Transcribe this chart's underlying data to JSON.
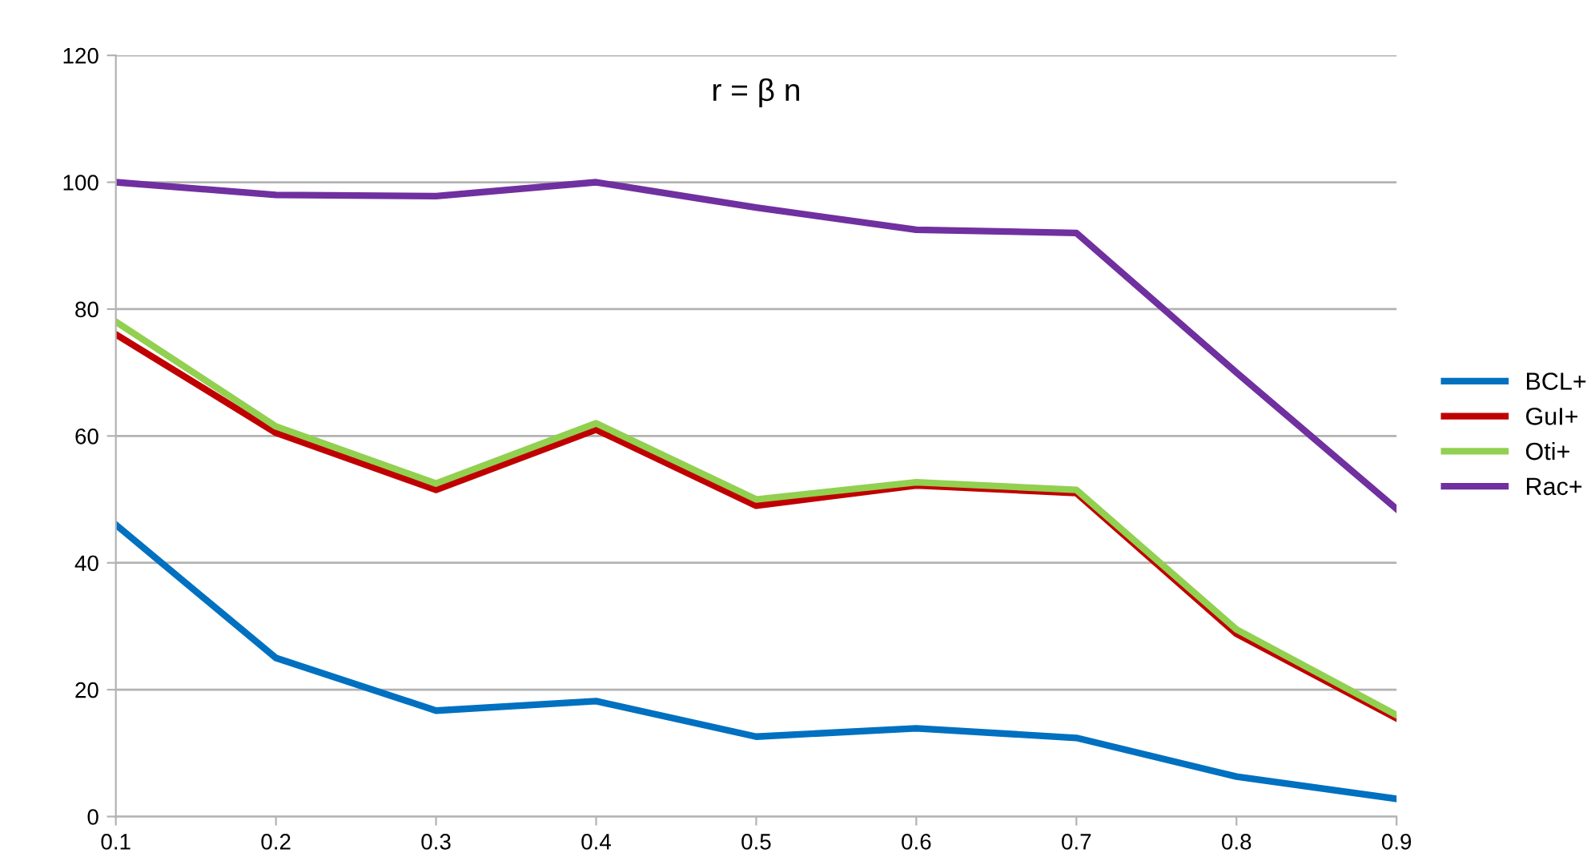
{
  "chart_data": {
    "type": "line",
    "title": "r = β n",
    "x": [
      0.1,
      0.2,
      0.3,
      0.4,
      0.5,
      0.6,
      0.7,
      0.8,
      0.9
    ],
    "series": [
      {
        "name": "BCL+",
        "color": "#0070c0",
        "values": [
          46,
          25,
          16.7,
          18.2,
          12.6,
          13.9,
          12.4,
          6.3,
          2.8
        ]
      },
      {
        "name": "GuI+",
        "color": "#c00000",
        "values": [
          76,
          60.5,
          51.5,
          61,
          49,
          52.2,
          51,
          28.8,
          15.5
        ]
      },
      {
        "name": "Oti+",
        "color": "#92d050",
        "values": [
          78,
          61.5,
          52.5,
          62,
          50,
          52.7,
          51.5,
          29.5,
          16
        ]
      },
      {
        "name": "Rac+",
        "color": "#7030a0",
        "values": [
          100,
          98,
          97.8,
          100,
          96,
          92.5,
          92,
          70,
          48.5
        ]
      }
    ],
    "xlim": [
      0.1,
      0.9
    ],
    "xticks": [
      0.1,
      0.2,
      0.3,
      0.4,
      0.5,
      0.6,
      0.7,
      0.8,
      0.9
    ],
    "ylim": [
      0,
      120
    ],
    "yticks": [
      0,
      20,
      40,
      60,
      80,
      100,
      120
    ],
    "grid": "y",
    "legend": "right",
    "marker": "none",
    "line_style": "solid"
  }
}
